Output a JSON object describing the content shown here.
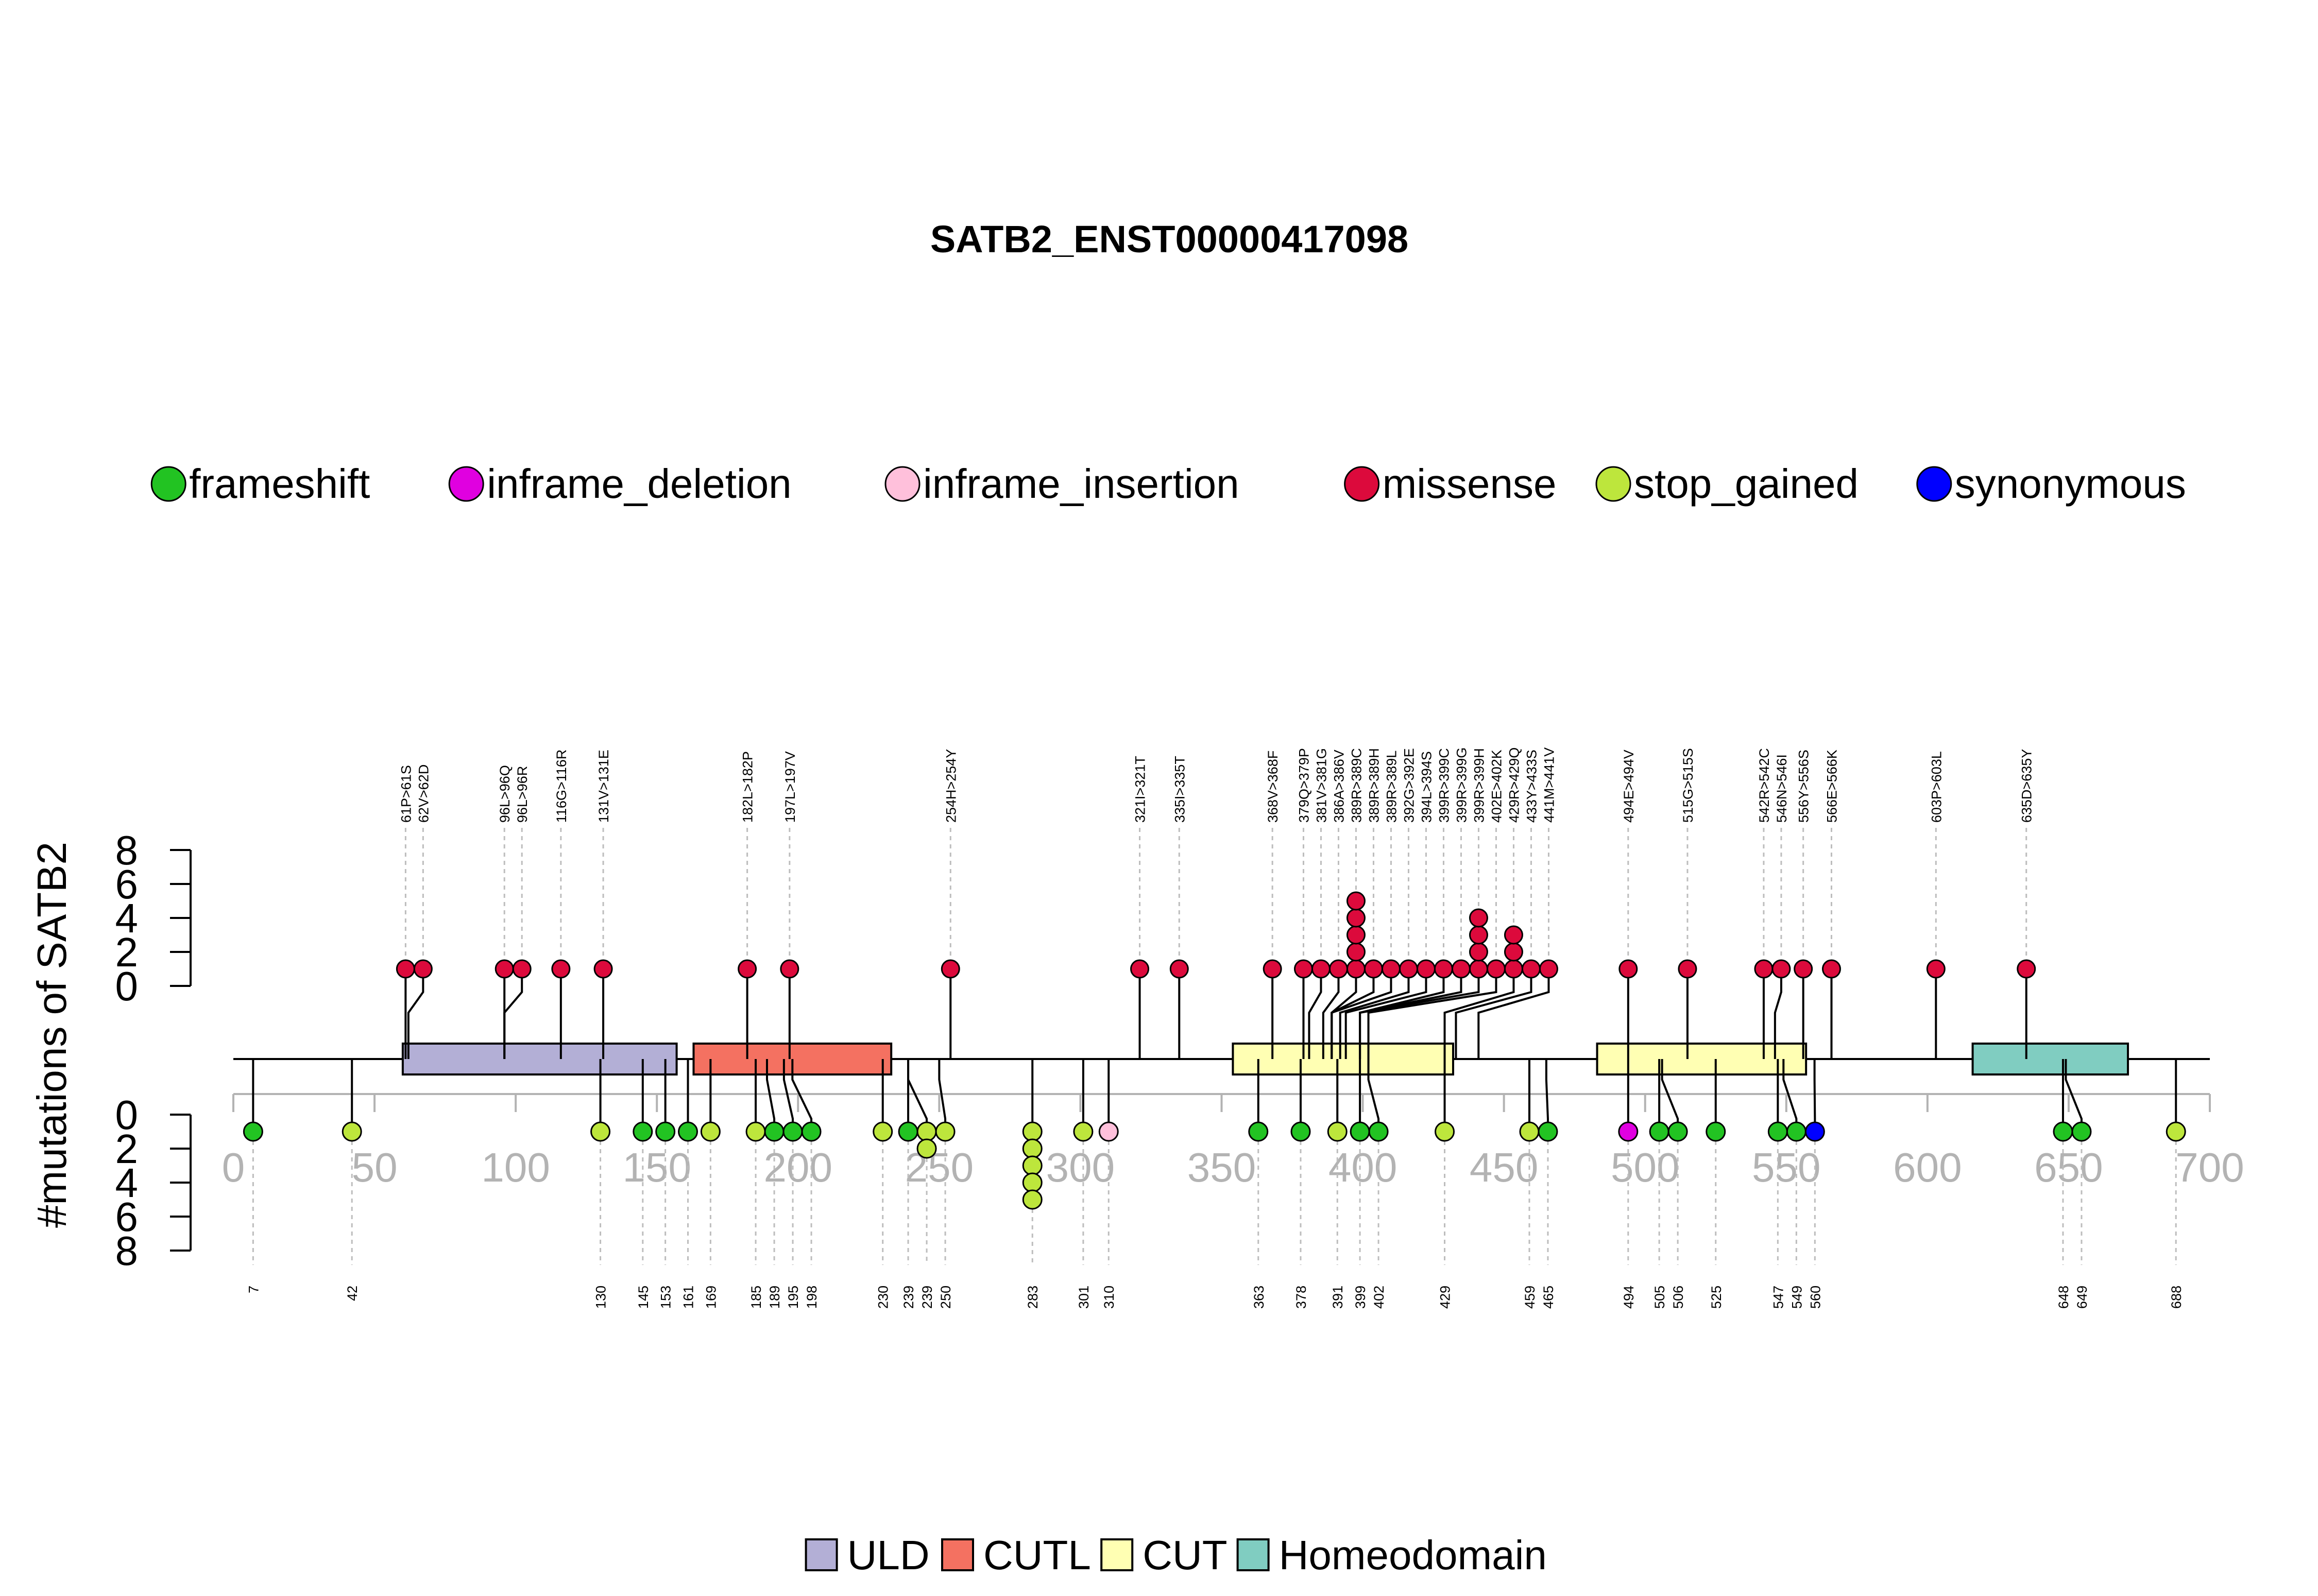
{
  "chart_data": {
    "type": "lollipop",
    "title": "SATB2_ENST00000417098",
    "ylabel": "#mutations of SATB2",
    "protein_length": 700,
    "xlim": [
      0,
      700
    ],
    "x_ticks": [
      0,
      50,
      100,
      150,
      200,
      250,
      300,
      350,
      400,
      450,
      500,
      550,
      600,
      650,
      700
    ],
    "ylim_upper": [
      0,
      8
    ],
    "ylim_lower": [
      0,
      8
    ],
    "y_ticks": [
      0,
      2,
      4,
      6,
      8
    ],
    "mutation_legend": [
      {
        "label": "frameshift",
        "color": "#22C322"
      },
      {
        "label": "inframe_deletion",
        "color": "#E000E0"
      },
      {
        "label": "inframe_insertion",
        "color": "#FFC0DB"
      },
      {
        "label": "missense",
        "color": "#DC0A3C"
      },
      {
        "label": "stop_gained",
        "color": "#BDE63C"
      },
      {
        "label": "synonymous",
        "color": "#0000FF"
      }
    ],
    "domain_legend": [
      {
        "label": "ULD",
        "color": "#B3AFD6"
      },
      {
        "label": "CUTL",
        "color": "#F47161"
      },
      {
        "label": "CUT",
        "color": "#FFFFB3"
      },
      {
        "label": "Homeodomain",
        "color": "#80CDC1"
      }
    ],
    "domains": [
      {
        "name": "ULD",
        "start": 60,
        "end": 157
      },
      {
        "name": "CUTL",
        "start": 163,
        "end": 233
      },
      {
        "name": "CUT",
        "start": 354,
        "end": 432
      },
      {
        "name": "CUT",
        "start": 483,
        "end": 557
      },
      {
        "name": "Homeodomain",
        "start": 616,
        "end": 671
      }
    ],
    "upper_mutations": [
      {
        "label": "61P>61S",
        "pos": 61,
        "count": 1,
        "type": "missense"
      },
      {
        "label": "62V>62D",
        "pos": 62,
        "count": 1,
        "type": "missense"
      },
      {
        "label": "96L>96Q",
        "pos": 96,
        "count": 1,
        "type": "missense"
      },
      {
        "label": "96L>96R",
        "pos": 96,
        "count": 1,
        "type": "missense"
      },
      {
        "label": "116G>116R",
        "pos": 116,
        "count": 1,
        "type": "missense"
      },
      {
        "label": "131V>131E",
        "pos": 131,
        "count": 1,
        "type": "missense"
      },
      {
        "label": "182L>182P",
        "pos": 182,
        "count": 1,
        "type": "missense"
      },
      {
        "label": "197L>197V",
        "pos": 197,
        "count": 1,
        "type": "missense"
      },
      {
        "label": "254H>254Y",
        "pos": 254,
        "count": 1,
        "type": "missense"
      },
      {
        "label": "321I>321T",
        "pos": 321,
        "count": 1,
        "type": "missense"
      },
      {
        "label": "335I>335T",
        "pos": 335,
        "count": 1,
        "type": "missense"
      },
      {
        "label": "368V>368F",
        "pos": 368,
        "count": 1,
        "type": "missense"
      },
      {
        "label": "379Q>379P",
        "pos": 379,
        "count": 1,
        "type": "missense"
      },
      {
        "label": "381V>381G",
        "pos": 381,
        "count": 1,
        "type": "missense"
      },
      {
        "label": "386A>386V",
        "pos": 386,
        "count": 1,
        "type": "missense"
      },
      {
        "label": "389R>389C",
        "pos": 389,
        "count": 5,
        "type": "missense"
      },
      {
        "label": "389R>389H",
        "pos": 389,
        "count": 1,
        "type": "missense"
      },
      {
        "label": "389R>389L",
        "pos": 389,
        "count": 1,
        "type": "missense"
      },
      {
        "label": "392G>392E",
        "pos": 392,
        "count": 1,
        "type": "missense"
      },
      {
        "label": "394L>394S",
        "pos": 394,
        "count": 1,
        "type": "missense"
      },
      {
        "label": "399R>399C",
        "pos": 399,
        "count": 1,
        "type": "missense"
      },
      {
        "label": "399R>399G",
        "pos": 399,
        "count": 1,
        "type": "missense"
      },
      {
        "label": "399R>399H",
        "pos": 399,
        "count": 4,
        "type": "missense"
      },
      {
        "label": "402E>402K",
        "pos": 402,
        "count": 1,
        "type": "missense"
      },
      {
        "label": "429R>429Q",
        "pos": 429,
        "count": 3,
        "type": "missense"
      },
      {
        "label": "433Y>433S",
        "pos": 433,
        "count": 1,
        "type": "missense"
      },
      {
        "label": "441M>441V",
        "pos": 441,
        "count": 1,
        "type": "missense"
      },
      {
        "label": "494E>494V",
        "pos": 494,
        "count": 1,
        "type": "missense"
      },
      {
        "label": "515G>515S",
        "pos": 515,
        "count": 1,
        "type": "missense"
      },
      {
        "label": "542R>542C",
        "pos": 542,
        "count": 1,
        "type": "missense"
      },
      {
        "label": "546N>546I",
        "pos": 546,
        "count": 1,
        "type": "missense"
      },
      {
        "label": "556Y>556S",
        "pos": 556,
        "count": 1,
        "type": "missense"
      },
      {
        "label": "566E>566K",
        "pos": 566,
        "count": 1,
        "type": "missense"
      },
      {
        "label": "603P>603L",
        "pos": 603,
        "count": 1,
        "type": "missense"
      },
      {
        "label": "635D>635Y",
        "pos": 635,
        "count": 1,
        "type": "missense"
      }
    ],
    "lower_mutations": [
      {
        "label": "7",
        "pos": 7,
        "count": 1,
        "type": "frameshift"
      },
      {
        "label": "42",
        "pos": 42,
        "count": 1,
        "type": "stop_gained"
      },
      {
        "label": "130",
        "pos": 130,
        "count": 1,
        "type": "stop_gained"
      },
      {
        "label": "145",
        "pos": 145,
        "count": 1,
        "type": "frameshift"
      },
      {
        "label": "153",
        "pos": 153,
        "count": 1,
        "type": "frameshift"
      },
      {
        "label": "161",
        "pos": 161,
        "count": 1,
        "type": "frameshift"
      },
      {
        "label": "169",
        "pos": 169,
        "count": 1,
        "type": "stop_gained"
      },
      {
        "label": "185",
        "pos": 185,
        "count": 1,
        "type": "stop_gained"
      },
      {
        "label": "189",
        "pos": 189,
        "count": 1,
        "type": "frameshift"
      },
      {
        "label": "195",
        "pos": 195,
        "count": 1,
        "type": "frameshift"
      },
      {
        "label": "198",
        "pos": 198,
        "count": 1,
        "type": "frameshift"
      },
      {
        "label": "230",
        "pos": 230,
        "count": 1,
        "type": "stop_gained"
      },
      {
        "label": "239",
        "pos": 239,
        "count": 1,
        "type": "frameshift"
      },
      {
        "label": "239",
        "pos": 239,
        "count": 2,
        "type": "stop_gained"
      },
      {
        "label": "250",
        "pos": 250,
        "count": 1,
        "type": "stop_gained"
      },
      {
        "label": "283",
        "pos": 283,
        "count": 5,
        "type": "stop_gained"
      },
      {
        "label": "301",
        "pos": 301,
        "count": 1,
        "type": "stop_gained"
      },
      {
        "label": "310",
        "pos": 310,
        "count": 1,
        "type": "inframe_insertion"
      },
      {
        "label": "363",
        "pos": 363,
        "count": 1,
        "type": "frameshift"
      },
      {
        "label": "378",
        "pos": 378,
        "count": 1,
        "type": "frameshift"
      },
      {
        "label": "391",
        "pos": 391,
        "count": 1,
        "type": "stop_gained"
      },
      {
        "label": "399",
        "pos": 399,
        "count": 1,
        "type": "frameshift"
      },
      {
        "label": "402",
        "pos": 402,
        "count": 1,
        "type": "frameshift"
      },
      {
        "label": "429",
        "pos": 429,
        "count": 1,
        "type": "stop_gained"
      },
      {
        "label": "459",
        "pos": 459,
        "count": 1,
        "type": "stop_gained"
      },
      {
        "label": "465",
        "pos": 465,
        "count": 1,
        "type": "frameshift"
      },
      {
        "label": "494",
        "pos": 494,
        "count": 1,
        "type": "inframe_deletion"
      },
      {
        "label": "505",
        "pos": 505,
        "count": 1,
        "type": "frameshift"
      },
      {
        "label": "506",
        "pos": 506,
        "count": 1,
        "type": "frameshift"
      },
      {
        "label": "525",
        "pos": 525,
        "count": 1,
        "type": "frameshift"
      },
      {
        "label": "547",
        "pos": 547,
        "count": 1,
        "type": "frameshift"
      },
      {
        "label": "549",
        "pos": 549,
        "count": 1,
        "type": "frameshift"
      },
      {
        "label": "560",
        "pos": 560,
        "count": 1,
        "type": "synonymous"
      },
      {
        "label": "648",
        "pos": 648,
        "count": 1,
        "type": "frameshift"
      },
      {
        "label": "649",
        "pos": 649,
        "count": 1,
        "type": "frameshift"
      },
      {
        "label": "688",
        "pos": 688,
        "count": 1,
        "type": "stop_gained"
      }
    ]
  }
}
